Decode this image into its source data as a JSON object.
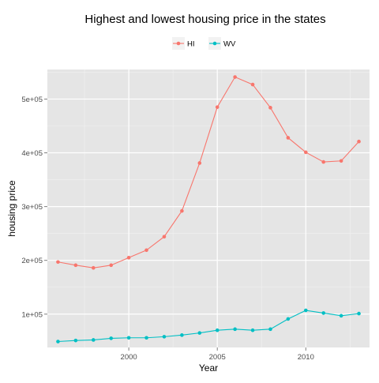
{
  "chart_data": {
    "type": "line",
    "title": "Highest and lowest housing price in the states",
    "xlabel": "Year",
    "ylabel": "housing price",
    "xlim": [
      1995.4,
      2013.6
    ],
    "ylim": [
      38000,
      555000
    ],
    "x_ticks": [
      2000,
      2005,
      2010
    ],
    "x_tick_labels": [
      "2000",
      "2005",
      "2010"
    ],
    "y_ticks": [
      100000,
      200000,
      300000,
      400000,
      500000
    ],
    "y_tick_labels": [
      "1e+05",
      "2e+05",
      "3e+05",
      "4e+05",
      "5e+05"
    ],
    "grid": true,
    "legend_position": "top",
    "x": [
      1996,
      1997,
      1998,
      1999,
      2000,
      2001,
      2002,
      2003,
      2004,
      2005,
      2006,
      2007,
      2008,
      2009,
      2010,
      2011,
      2012,
      2013
    ],
    "series": [
      {
        "name": "HI",
        "color": "#F8766D",
        "values": [
          197000,
          191000,
          186000,
          191000,
          205000,
          219000,
          244000,
          292000,
          381000,
          485000,
          541000,
          527000,
          484000,
          428000,
          401000,
          383000,
          385000,
          421000
        ]
      },
      {
        "name": "WV",
        "color": "#00BFC4",
        "values": [
          49000,
          51000,
          52000,
          55000,
          56000,
          56000,
          58000,
          61000,
          65000,
          70000,
          72000,
          70000,
          72000,
          91000,
          107000,
          102000,
          97000,
          101000
        ]
      }
    ],
    "colors": {
      "panel_background": "#E5E5E5",
      "grid_major": "#FFFFFF",
      "grid_minor": "#F2F2F2",
      "axis_text": "#4D4D4D",
      "tick": "#7F7F7F"
    }
  }
}
